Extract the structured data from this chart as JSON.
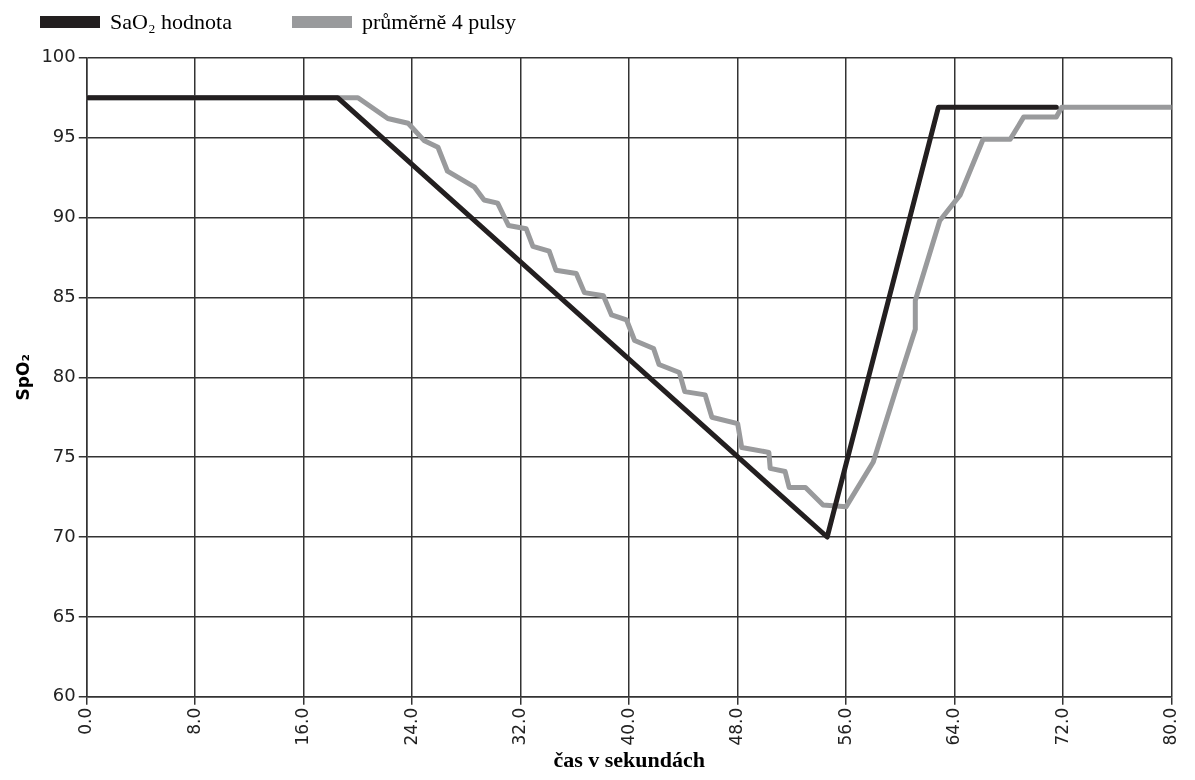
{
  "chart_data": {
    "type": "line",
    "xlabel": "čas v sekundách",
    "ylabel": "SpO₂",
    "series": [
      {
        "name": "SaO₂ hodnota",
        "color": "#231f20",
        "x": [
          0,
          18.5,
          54.6,
          62.8,
          71.5
        ],
        "values": [
          97.5,
          97.5,
          70,
          96.9,
          96.9
        ]
      },
      {
        "name": "průměrně 4 pulsy",
        "color": "#999a9c",
        "x": [
          0,
          20,
          22.2,
          23.7,
          24.9,
          25.9,
          26.6,
          28.6,
          29.3,
          30.3,
          31.1,
          32.4,
          32.9,
          34.1,
          34.6,
          36.1,
          36.7,
          38.1,
          38.7,
          39.8,
          40.4,
          41.8,
          42.2,
          43.7,
          44.1,
          45.6,
          46.1,
          48.0,
          48.3,
          50.3,
          50.4,
          51.5,
          51.8,
          53.0,
          54.3,
          56.0,
          58.0,
          59.7,
          61.1,
          61.1,
          62.9,
          64.4,
          66.1,
          68.1,
          69.1,
          71.5,
          71.9,
          80
        ],
        "values": [
          97.5,
          97.5,
          96.2,
          95.9,
          94.8,
          94.4,
          92.9,
          91.9,
          91.1,
          90.9,
          89.5,
          89.3,
          88.2,
          87.9,
          86.7,
          86.5,
          85.3,
          85.1,
          83.9,
          83.6,
          82.3,
          81.8,
          80.8,
          80.3,
          79.1,
          78.9,
          77.5,
          77.1,
          75.6,
          75.3,
          74.3,
          74.1,
          73.1,
          73.1,
          72.0,
          71.9,
          74.7,
          79.3,
          83.0,
          84.8,
          89.8,
          91.4,
          94.9,
          94.9,
          96.3,
          96.3,
          96.9,
          96.9
        ]
      }
    ],
    "xlim": [
      0,
      80
    ],
    "xticks": [
      {
        "value": 0,
        "label": "0.0"
      },
      {
        "value": 8,
        "label": "8.0"
      },
      {
        "value": 16,
        "label": "16.0"
      },
      {
        "value": 24,
        "label": "24.0"
      },
      {
        "value": 32,
        "label": "32.0"
      },
      {
        "value": 40,
        "label": "40.0"
      },
      {
        "value": 48,
        "label": "48.0"
      },
      {
        "value": 56,
        "label": "56.0"
      },
      {
        "value": 64,
        "label": "64.0"
      },
      {
        "value": 72,
        "label": "72.0"
      },
      {
        "value": 80,
        "label": "80.0"
      }
    ],
    "ylim": [
      60,
      100
    ],
    "yticks": [
      60,
      65,
      70,
      75,
      80,
      85,
      90,
      95,
      100
    ],
    "grid": true,
    "legend": "top",
    "marker": "none",
    "line_style": "solid"
  }
}
